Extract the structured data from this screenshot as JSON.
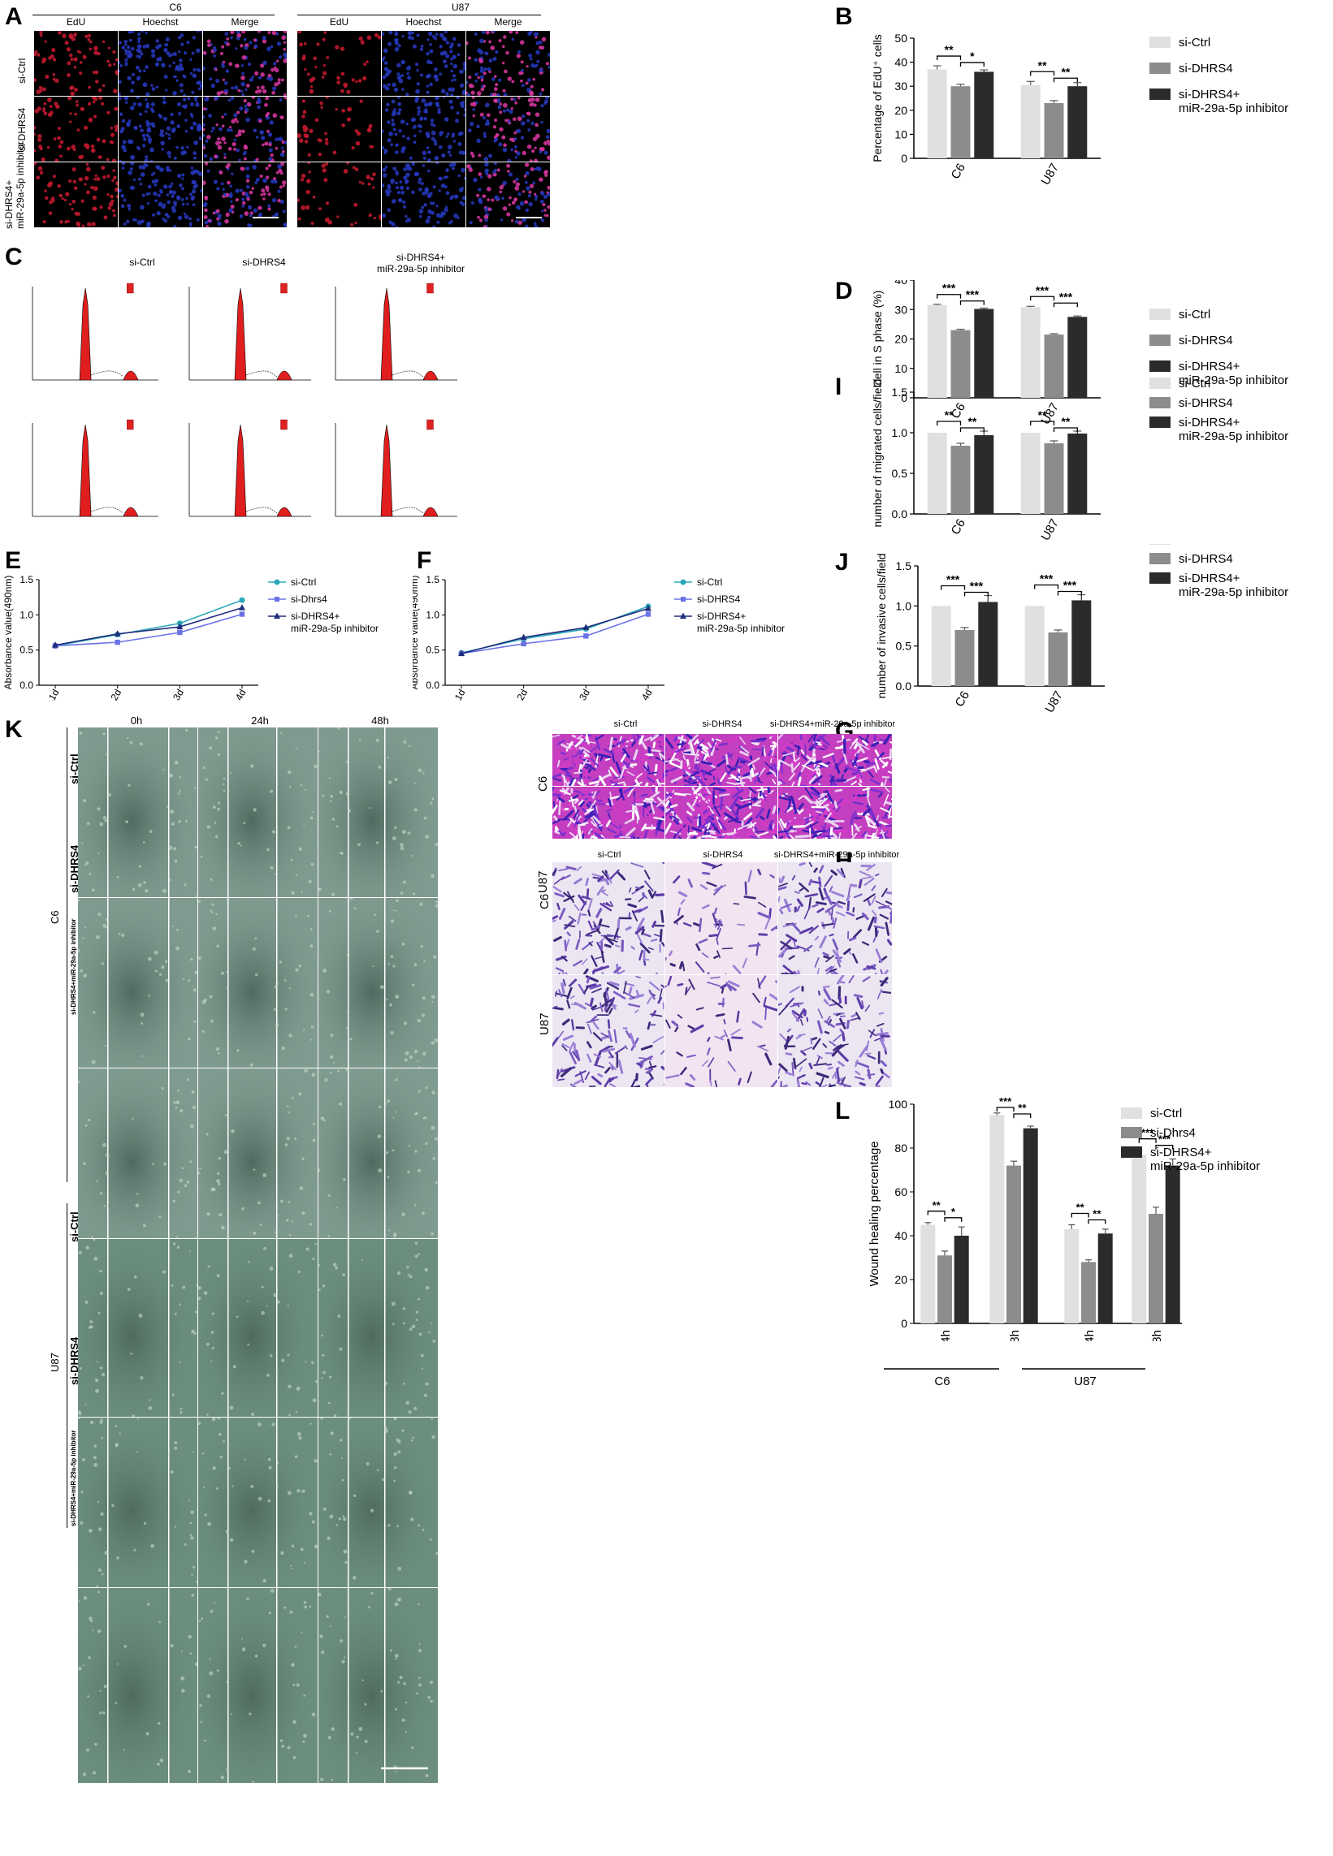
{
  "panel_labels": {
    "A": "A",
    "B": "B",
    "C": "C",
    "D": "D",
    "E": "E",
    "F": "F",
    "I": "I",
    "J": "J",
    "K": "K",
    "G": "G",
    "H": "H",
    "L": "L"
  },
  "colors": {
    "si_ctrl": "#e0e0e0",
    "si_dhrs4": "#8c8c8c",
    "combo": "#2b2b2b",
    "line_ctrl": "#2aa7b8",
    "line_dhrs4": "#6b72e6",
    "line_combo": "#1f2d7a",
    "edu_red": "#c0182e",
    "hoechst_blue": "#2536b8",
    "flow_red": "#e01e1e",
    "crystal_violet": "#a23ad6",
    "wound_green": "#6f8f80"
  },
  "panelA": {
    "groups": [
      {
        "title": "C6",
        "columns": [
          "EdU",
          "Hoechst",
          "Merge"
        ]
      },
      {
        "title": "U87",
        "columns": [
          "EdU",
          "Hoechst",
          "Merge"
        ]
      }
    ],
    "rows": [
      "si-Ctrl",
      "si-DHRS4",
      "si-DHRS4+\nmiR-29a-5p inhibitor"
    ]
  },
  "panelC": {
    "columns": [
      "si-Ctrl",
      "si-DHRS4",
      "si-DHRS4+\nmiR-29a-5p inhibitor"
    ]
  },
  "panelG": {
    "columns": [
      "si-Ctrl",
      "si-DHRS4",
      "si-DHRS4+miR-29a-5p inhibitor"
    ],
    "rows": [
      "C6",
      "U87"
    ]
  },
  "panelH": {
    "columns": [
      "si-Ctrl",
      "si-DHRS4",
      "si-DHRS4+miR-29a-5p inhibitor"
    ],
    "rows": [
      "C6",
      "U87"
    ]
  },
  "panelK": {
    "columns": [
      "0h",
      "24h",
      "48h"
    ],
    "groups": [
      {
        "name": "C6",
        "rows": [
          "si-Ctrl",
          "si-DHRS4",
          "si-DHRS4+miR-29a-5p inhibitor"
        ]
      },
      {
        "name": "U87",
        "rows": [
          "si-Ctrl",
          "si-DHRS4",
          "si-DHRS4+miR-29a-5p inhibitor"
        ]
      }
    ]
  },
  "chart_data": [
    {
      "id": "B",
      "type": "bar",
      "ylabel": "Percentage of EdU⁺ cells",
      "ylim": [
        0,
        50
      ],
      "yticks": [
        0,
        10,
        20,
        30,
        40,
        50
      ],
      "categories": [
        "C6",
        "U87"
      ],
      "series": [
        {
          "name": "si-Ctrl",
          "values": [
            37,
            30.5
          ],
          "err": [
            1.5,
            1.5
          ]
        },
        {
          "name": "si-DHRS4",
          "values": [
            30,
            23
          ],
          "err": [
            0.8,
            1
          ]
        },
        {
          "name": "si-DHRS4+\nmiR-29a-5p inhibitor",
          "values": [
            36,
            30
          ],
          "err": [
            0.8,
            1.5
          ]
        }
      ],
      "annotations": [
        [
          "**",
          "*"
        ],
        [
          "**",
          "**"
        ]
      ]
    },
    {
      "id": "D",
      "type": "bar",
      "ylabel": "Cell in S phase (%)",
      "ylim": [
        0,
        40
      ],
      "yticks": [
        0,
        10,
        20,
        30,
        40
      ],
      "categories": [
        "C6",
        "U87"
      ],
      "series": [
        {
          "name": "si-Ctrl",
          "values": [
            31.5,
            30.8
          ],
          "err": [
            0.3,
            0.3
          ]
        },
        {
          "name": "si-DHRS4",
          "values": [
            23,
            21.5
          ],
          "err": [
            0.3,
            0.3
          ]
        },
        {
          "name": "si-DHRS4+\nmiR-29a-5p inhibitor",
          "values": [
            30.2,
            27.5
          ],
          "err": [
            0.3,
            0.3
          ]
        }
      ],
      "annotations": [
        [
          "***",
          "***"
        ],
        [
          "***",
          "***"
        ]
      ]
    },
    {
      "id": "I",
      "type": "bar",
      "ylabel": "number of migrated cells/field",
      "ylim": [
        0,
        1.5
      ],
      "yticks": [
        0,
        0.5,
        1.0,
        1.5
      ],
      "categories": [
        "C6",
        "U87"
      ],
      "series": [
        {
          "name": "si-Ctrl",
          "values": [
            1.0,
            1.0
          ],
          "err": [
            0,
            0
          ]
        },
        {
          "name": "si-DHRS4",
          "values": [
            0.84,
            0.87
          ],
          "err": [
            0.03,
            0.03
          ]
        },
        {
          "name": "si-DHRS4+\nmiR-29a-5p inhibitor",
          "values": [
            0.97,
            0.99
          ],
          "err": [
            0.05,
            0.03
          ]
        }
      ],
      "annotations": [
        [
          "**",
          "**"
        ],
        [
          "**",
          "**"
        ]
      ]
    },
    {
      "id": "J",
      "type": "bar",
      "ylabel": "number of invasive cells/field",
      "ylim": [
        0,
        1.5
      ],
      "yticks": [
        0,
        0.5,
        1.0,
        1.5
      ],
      "categories": [
        "C6",
        "U87"
      ],
      "series": [
        {
          "name": "si-Ctrl",
          "values": [
            1.0,
            1.0
          ],
          "err": [
            0,
            0
          ]
        },
        {
          "name": "si-DHRS4",
          "values": [
            0.7,
            0.67
          ],
          "err": [
            0.03,
            0.03
          ]
        },
        {
          "name": "si-DHRS4+\nmiR-29a-5p inhibitor",
          "values": [
            1.05,
            1.07
          ],
          "err": [
            0.08,
            0.07
          ]
        }
      ],
      "annotations": [
        [
          "***",
          "***"
        ],
        [
          "***",
          "***"
        ]
      ]
    },
    {
      "id": "E",
      "type": "line",
      "ylabel": "Absorbance value(490nm)",
      "ylim": [
        0,
        1.5
      ],
      "yticks": [
        0.0,
        0.5,
        1.0,
        1.5
      ],
      "x": [
        "1d",
        "2d",
        "3d",
        "4d"
      ],
      "series": [
        {
          "name": "si-Ctrl",
          "values": [
            0.56,
            0.72,
            0.88,
            1.21
          ]
        },
        {
          "name": "si-Dhrs4",
          "values": [
            0.56,
            0.61,
            0.75,
            1.01
          ]
        },
        {
          "name": "si-DHRS4+\nmiR-29a-5p inhibitor",
          "values": [
            0.57,
            0.73,
            0.83,
            1.1
          ]
        }
      ]
    },
    {
      "id": "F",
      "type": "line",
      "ylabel": "Absorbance value(490nm)",
      "ylim": [
        0,
        1.5
      ],
      "yticks": [
        0.0,
        0.5,
        1.0,
        1.5
      ],
      "x": [
        "1d",
        "2d",
        "3d",
        "4d"
      ],
      "series": [
        {
          "name": "si-Ctrl",
          "values": [
            0.46,
            0.66,
            0.8,
            1.12
          ]
        },
        {
          "name": "si-DHRS4",
          "values": [
            0.45,
            0.59,
            0.7,
            1.01
          ]
        },
        {
          "name": "si-DHRS4+\nmiR-29a-5p inhibitor",
          "values": [
            0.45,
            0.68,
            0.82,
            1.09
          ]
        }
      ]
    },
    {
      "id": "L",
      "type": "bar",
      "ylabel": "Wound healing percentage",
      "ylim": [
        0,
        100
      ],
      "yticks": [
        0,
        20,
        40,
        60,
        80,
        100
      ],
      "categories": [
        "24h",
        "48h",
        "24h",
        "48h"
      ],
      "groups": [
        "C6",
        "U87"
      ],
      "series": [
        {
          "name": "si-Ctrl",
          "values": [
            45,
            95,
            43,
            77
          ],
          "err": [
            1,
            1,
            2,
            2
          ]
        },
        {
          "name": "si-Dhrs4",
          "values": [
            31,
            72,
            28,
            50
          ],
          "err": [
            2,
            2,
            1,
            3
          ]
        },
        {
          "name": "si-DHRS4+\nmiR-29a-5p inhibitor",
          "values": [
            40,
            89,
            41,
            72
          ],
          "err": [
            4,
            1,
            2,
            3
          ]
        }
      ],
      "annotations": [
        [
          "**",
          "*"
        ],
        [
          "***",
          "**"
        ],
        [
          "**",
          "**"
        ],
        [
          "***",
          "***"
        ]
      ]
    }
  ]
}
